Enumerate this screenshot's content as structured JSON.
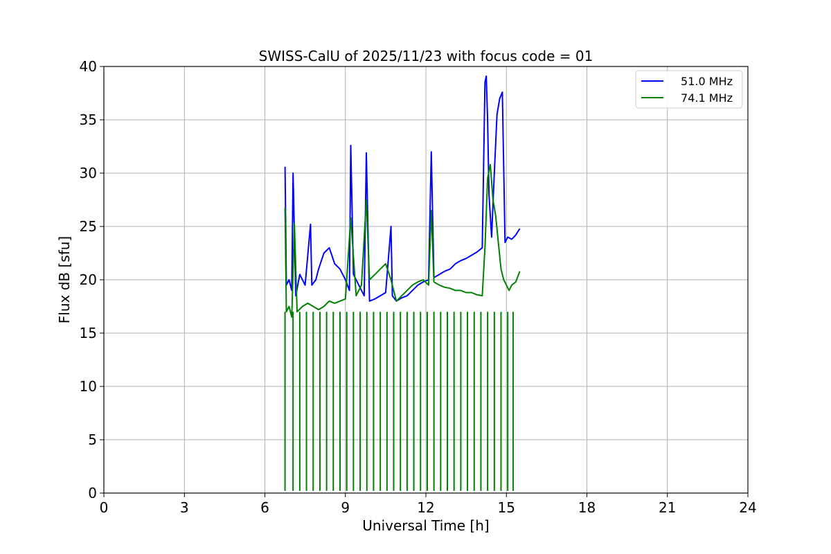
{
  "chart_data": {
    "type": "line",
    "title": "SWISS-CalU of 2025/11/23 with focus code = 01",
    "xlabel": "Universal Time [h]",
    "ylabel": "Flux dB [sfu]",
    "xlim": [
      0,
      24
    ],
    "ylim": [
      0,
      40
    ],
    "xticks": [
      0,
      3,
      6,
      9,
      12,
      15,
      18,
      21,
      24
    ],
    "yticks": [
      0,
      5,
      10,
      15,
      20,
      25,
      30,
      35,
      40
    ],
    "xtick_labels": [
      "0",
      "3",
      "6",
      "9",
      "12",
      "15",
      "18",
      "21",
      "24"
    ],
    "ytick_labels": [
      "0",
      "5",
      "10",
      "15",
      "20",
      "25",
      "30",
      "35",
      "40"
    ],
    "grid": true,
    "legend_position": "top-right",
    "series": [
      {
        "name": "51.0 MHz",
        "color": "#0000ff",
        "x": [
          6.75,
          6.8,
          6.9,
          7.0,
          7.05,
          7.15,
          7.3,
          7.5,
          7.7,
          7.75,
          7.9,
          8.0,
          8.2,
          8.4,
          8.6,
          8.8,
          9.0,
          9.15,
          9.2,
          9.3,
          9.5,
          9.7,
          9.78,
          9.9,
          10.1,
          10.3,
          10.5,
          10.7,
          10.75,
          10.9,
          11.1,
          11.3,
          11.5,
          11.7,
          11.9,
          12.1,
          12.2,
          12.3,
          12.5,
          12.7,
          12.9,
          13.1,
          13.3,
          13.5,
          13.7,
          13.9,
          14.1,
          14.2,
          14.25,
          14.3,
          14.35,
          14.45,
          14.55,
          14.65,
          14.75,
          14.85,
          14.95,
          15.05,
          15.2,
          15.35,
          15.5
        ],
        "y": [
          30.6,
          19.5,
          20.0,
          19.0,
          30.0,
          18.5,
          20.5,
          19.5,
          25.2,
          19.5,
          20.0,
          21.0,
          22.5,
          23.0,
          21.5,
          21.0,
          20.0,
          19.0,
          32.6,
          20.5,
          19.5,
          18.5,
          31.9,
          18.0,
          18.2,
          18.5,
          18.8,
          25.0,
          18.5,
          18.0,
          18.3,
          18.5,
          19.0,
          19.5,
          19.8,
          20.0,
          32.0,
          20.2,
          20.5,
          20.8,
          21.0,
          21.5,
          21.8,
          22.0,
          22.3,
          22.6,
          23.0,
          38.5,
          39.1,
          35.0,
          28.0,
          24.0,
          30.0,
          35.5,
          37.0,
          37.6,
          23.5,
          24.0,
          23.8,
          24.2,
          24.8
        ]
      },
      {
        "name": "74.1 MHz",
        "color": "#008000",
        "x": [
          6.75,
          6.8,
          6.9,
          7.0,
          7.1,
          7.2,
          7.4,
          7.6,
          7.8,
          8.0,
          8.2,
          8.4,
          8.6,
          8.8,
          9.0,
          9.2,
          9.4,
          9.6,
          9.78,
          9.9,
          10.1,
          10.3,
          10.5,
          10.7,
          10.9,
          11.1,
          11.3,
          11.5,
          11.7,
          11.9,
          12.1,
          12.2,
          12.3,
          12.5,
          12.7,
          12.9,
          13.1,
          13.3,
          13.5,
          13.7,
          13.9,
          14.1,
          14.2,
          14.3,
          14.4,
          14.5,
          14.6,
          14.7,
          14.8,
          14.9,
          15.0,
          15.1,
          15.2,
          15.35,
          15.5
        ],
        "y": [
          26.8,
          17.0,
          17.5,
          16.5,
          25.3,
          17.0,
          17.5,
          17.8,
          17.5,
          17.2,
          17.5,
          18.0,
          17.8,
          18.0,
          18.2,
          25.8,
          18.5,
          19.5,
          27.5,
          20.0,
          20.5,
          21.0,
          21.5,
          20.0,
          18.0,
          18.5,
          19.0,
          19.5,
          19.8,
          20.0,
          19.5,
          26.5,
          19.8,
          19.5,
          19.3,
          19.2,
          19.0,
          19.0,
          18.8,
          18.8,
          18.6,
          18.5,
          23.0,
          29.5,
          30.8,
          27.5,
          26.0,
          23.5,
          21.0,
          20.0,
          19.5,
          19.0,
          19.5,
          19.8,
          20.8
        ]
      },
      {
        "name": "",
        "color": "#008000",
        "dips_to": 0,
        "x": [
          6.75,
          7.05,
          7.3,
          7.55,
          7.8,
          8.05,
          8.3,
          8.55,
          8.8,
          9.05,
          9.3,
          9.55,
          9.8,
          10.05,
          10.3,
          10.55,
          10.8,
          11.05,
          11.3,
          11.55,
          11.8,
          12.05,
          12.3,
          12.55,
          12.8,
          13.05,
          13.3,
          13.55,
          13.8,
          14.05,
          14.3,
          14.55,
          14.8,
          15.05,
          15.25
        ],
        "y": [
          0.2,
          0.2,
          0.2,
          0.2,
          0.2,
          0.2,
          0.2,
          0.2,
          0.2,
          0.2,
          0.2,
          0.2,
          0.2,
          0.2,
          0.2,
          0.2,
          0.2,
          0.2,
          0.2,
          0.2,
          0.2,
          0.2,
          0.2,
          0.2,
          0.2,
          0.2,
          0.2,
          0.2,
          0.2,
          0.2,
          0.2,
          0.2,
          0.2,
          0.2,
          0.2
        ]
      }
    ],
    "legend": [
      {
        "label": "51.0 MHz",
        "color": "#0000ff"
      },
      {
        "label": "74.1 MHz",
        "color": "#008000"
      }
    ]
  }
}
